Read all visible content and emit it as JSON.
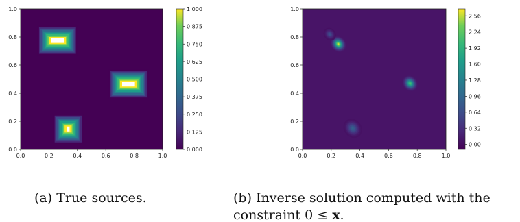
{
  "chart_data": [
    {
      "type": "heatmap",
      "caption": "(a) True sources.",
      "xlim": [
        0.0,
        1.0
      ],
      "ylim": [
        0.0,
        1.0
      ],
      "xticks": [
        "0.0",
        "0.2",
        "0.4",
        "0.6",
        "0.8",
        "1.0"
      ],
      "yticks": [
        "0.0",
        "0.2",
        "0.4",
        "0.6",
        "0.8",
        "1.0"
      ],
      "colorbar": {
        "range": [
          0.0,
          1.0
        ],
        "ticks": [
          "0.000",
          "0.125",
          "0.250",
          "0.375",
          "0.500",
          "0.625",
          "0.750",
          "0.875",
          "1.000"
        ],
        "tick_values": [
          0.0,
          0.125,
          0.25,
          0.375,
          0.5,
          0.625,
          0.75,
          0.875,
          1.0
        ]
      },
      "colormap": "viridis",
      "sources": [
        {
          "x": [
            0.2,
            0.32
          ],
          "y": [
            0.75,
            0.8
          ],
          "peak": 1.0,
          "falloff": 0.08
        },
        {
          "x": [
            0.7,
            0.82
          ],
          "y": [
            0.44,
            0.49
          ],
          "peak": 1.0,
          "falloff": 0.08
        },
        {
          "x": [
            0.31,
            0.36
          ],
          "y": [
            0.12,
            0.17
          ],
          "peak": 1.0,
          "falloff": 0.08
        }
      ]
    },
    {
      "type": "heatmap",
      "caption": "(b) Inverse solution computed with the constraint 0 ≤ x.",
      "caption_line1": "(b) Inverse solution computed with the",
      "caption_line2": "constraint 0 ≤ ",
      "caption_bold_x": "x",
      "caption_end": ".",
      "xlim": [
        0.0,
        1.0
      ],
      "ylim": [
        0.0,
        1.0
      ],
      "xticks": [
        "0.0",
        "0.2",
        "0.4",
        "0.6",
        "0.8",
        "1.0"
      ],
      "yticks": [
        "0.0",
        "0.2",
        "0.4",
        "0.6",
        "0.8",
        "1.0"
      ],
      "colorbar": {
        "range": [
          -0.1,
          2.7
        ],
        "ticks": [
          "0.00",
          "0.32",
          "0.64",
          "0.96",
          "1.28",
          "1.60",
          "1.92",
          "2.24",
          "2.56"
        ],
        "tick_values": [
          0.0,
          0.32,
          0.64,
          0.96,
          1.28,
          1.6,
          1.92,
          2.24,
          2.56
        ]
      },
      "colormap": "viridis",
      "sources": [
        {
          "x": 0.25,
          "y": 0.75,
          "peak": 2.7,
          "spread": 0.05
        },
        {
          "x": 0.19,
          "y": 0.82,
          "peak": 0.7,
          "spread": 0.04
        },
        {
          "x": 0.75,
          "y": 0.47,
          "peak": 2.2,
          "spread": 0.05
        },
        {
          "x": 0.35,
          "y": 0.15,
          "peak": 0.9,
          "spread": 0.06
        }
      ]
    }
  ]
}
